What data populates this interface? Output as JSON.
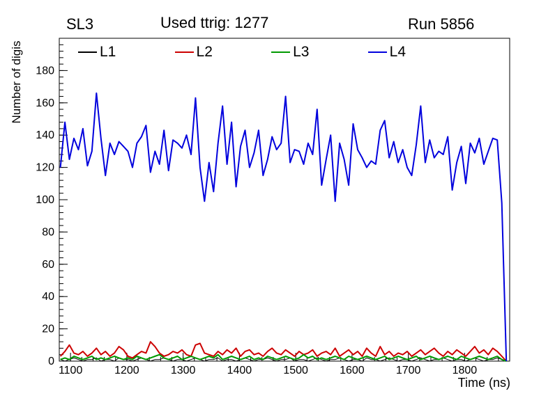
{
  "titles": {
    "left": "SL3",
    "center": "Used ttrig: 1277",
    "right": "Run 5856"
  },
  "axes": {
    "x_label": "Time (ns)",
    "y_label": "Number of digis",
    "x_ticks": [
      1100,
      1200,
      1300,
      1400,
      1500,
      1600,
      1700,
      1800
    ],
    "y_ticks": [
      0,
      20,
      40,
      60,
      80,
      100,
      120,
      140,
      160,
      180
    ],
    "x_minor_step": 20,
    "y_minor_step": 4
  },
  "chart_data": {
    "type": "line",
    "title": "Used ttrig: 1277",
    "xlabel": "Time (ns)",
    "ylabel": "Number of digis",
    "xlim": [
      1080,
      1880
    ],
    "ylim": [
      0,
      200
    ],
    "grid": false,
    "legend_position": "top-inside",
    "x": [
      1082,
      1090,
      1098,
      1106,
      1114,
      1122,
      1130,
      1138,
      1146,
      1154,
      1162,
      1170,
      1178,
      1186,
      1194,
      1202,
      1210,
      1218,
      1226,
      1234,
      1242,
      1250,
      1258,
      1266,
      1274,
      1282,
      1290,
      1298,
      1306,
      1314,
      1322,
      1330,
      1338,
      1346,
      1354,
      1362,
      1370,
      1378,
      1386,
      1394,
      1402,
      1410,
      1418,
      1426,
      1434,
      1442,
      1450,
      1458,
      1466,
      1474,
      1482,
      1490,
      1498,
      1506,
      1514,
      1522,
      1530,
      1538,
      1546,
      1554,
      1562,
      1570,
      1578,
      1586,
      1594,
      1602,
      1610,
      1618,
      1626,
      1634,
      1642,
      1650,
      1658,
      1666,
      1674,
      1682,
      1690,
      1698,
      1706,
      1714,
      1722,
      1730,
      1738,
      1746,
      1754,
      1762,
      1770,
      1778,
      1786,
      1794,
      1802,
      1810,
      1818,
      1826,
      1834,
      1842,
      1850,
      1858,
      1866,
      1874
    ],
    "series": [
      {
        "name": "L1",
        "color": "#000000",
        "width": 1,
        "values": [
          1,
          0,
          1,
          2,
          1,
          0,
          1,
          1,
          2,
          0,
          1,
          1,
          0,
          2,
          1,
          1,
          0,
          1,
          2,
          1,
          0,
          1,
          1,
          2,
          1,
          0,
          1,
          1,
          0,
          1,
          2,
          1,
          0,
          1,
          1,
          2,
          0,
          1,
          1,
          0,
          1,
          2,
          1,
          0,
          1,
          1,
          2,
          1,
          0,
          1,
          1,
          2,
          0,
          1,
          1,
          0,
          1,
          2,
          1,
          0,
          1,
          1,
          2,
          1,
          0,
          1,
          1,
          0,
          2,
          1,
          1,
          0,
          1,
          2,
          1,
          0,
          1,
          1,
          0,
          1,
          2,
          1,
          0,
          1,
          1,
          2,
          1,
          0,
          1,
          1,
          0,
          1,
          2,
          1,
          0,
          1,
          1,
          2,
          1,
          0
        ]
      },
      {
        "name": "L2",
        "color": "#cc0000",
        "width": 2,
        "values": [
          3,
          6,
          10,
          5,
          4,
          6,
          3,
          5,
          8,
          4,
          6,
          3,
          5,
          9,
          7,
          3,
          2,
          4,
          6,
          5,
          12,
          9,
          5,
          3,
          4,
          6,
          5,
          7,
          4,
          3,
          10,
          11,
          5,
          4,
          3,
          6,
          4,
          7,
          5,
          8,
          3,
          6,
          7,
          4,
          5,
          3,
          6,
          8,
          5,
          4,
          7,
          5,
          3,
          6,
          4,
          5,
          7,
          3,
          5,
          6,
          4,
          8,
          3,
          5,
          7,
          4,
          6,
          3,
          8,
          5,
          3,
          9,
          4,
          6,
          3,
          5,
          4,
          6,
          3,
          5,
          7,
          4,
          6,
          8,
          5,
          3,
          6,
          4,
          7,
          5,
          3,
          6,
          9,
          5,
          7,
          4,
          8,
          6,
          3,
          0
        ]
      },
      {
        "name": "L3",
        "color": "#009900",
        "width": 2,
        "values": [
          1,
          2,
          1,
          3,
          2,
          1,
          2,
          3,
          1,
          2,
          1,
          2,
          3,
          2,
          1,
          2,
          1,
          3,
          2,
          1,
          2,
          3,
          4,
          2,
          1,
          2,
          3,
          1,
          2,
          3,
          2,
          1,
          2,
          3,
          2,
          4,
          1,
          2,
          3,
          2,
          1,
          2,
          3,
          1,
          2,
          1,
          3,
          2,
          1,
          2,
          3,
          2,
          1,
          2,
          4,
          2,
          3,
          1,
          2,
          1,
          2,
          3,
          2,
          1,
          3,
          2,
          1,
          2,
          3,
          2,
          1,
          2,
          3,
          1,
          2,
          3,
          2,
          1,
          2,
          3,
          1,
          2,
          3,
          2,
          1,
          2,
          3,
          2,
          1,
          3,
          2,
          1,
          2,
          3,
          2,
          1,
          2,
          3,
          1,
          0
        ]
      },
      {
        "name": "L4",
        "color": "#0000dd",
        "width": 2,
        "values": [
          120,
          148,
          125,
          138,
          131,
          144,
          121,
          130,
          166,
          138,
          115,
          135,
          128,
          136,
          133,
          130,
          120,
          135,
          139,
          146,
          117,
          130,
          122,
          143,
          118,
          137,
          135,
          132,
          140,
          128,
          163,
          120,
          99,
          123,
          105,
          135,
          158,
          122,
          148,
          108,
          133,
          143,
          120,
          129,
          143,
          115,
          125,
          139,
          131,
          135,
          164,
          123,
          131,
          130,
          122,
          135,
          128,
          156,
          109,
          125,
          140,
          99,
          135,
          125,
          109,
          147,
          131,
          126,
          120,
          124,
          122,
          143,
          149,
          126,
          136,
          123,
          131,
          120,
          115,
          134,
          158,
          123,
          137,
          126,
          130,
          128,
          139,
          106,
          123,
          133,
          110,
          135,
          129,
          138,
          122,
          130,
          138,
          137,
          98,
          0
        ]
      }
    ]
  }
}
